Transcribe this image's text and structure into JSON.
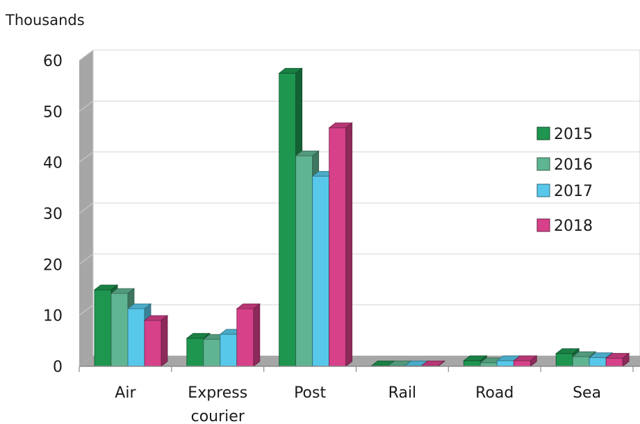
{
  "chart_data": {
    "type": "bar",
    "title": "",
    "unit_label": "Thousands",
    "xlabel": "",
    "ylabel": "",
    "ylim": [
      0,
      60
    ],
    "yticks": [
      "0",
      "10",
      "20",
      "30",
      "40",
      "50",
      "60"
    ],
    "grid": true,
    "legend_position": "right",
    "categories": [
      {
        "lines": [
          "Air"
        ]
      },
      {
        "lines": [
          "Express",
          "courier"
        ]
      },
      {
        "lines": [
          "Post"
        ]
      },
      {
        "lines": [
          "Rail"
        ]
      },
      {
        "lines": [
          "Road"
        ]
      },
      {
        "lines": [
          "Sea"
        ]
      }
    ],
    "series": [
      {
        "name": "2015",
        "color": "#1e9650",
        "values": [
          15,
          5.5,
          57.5,
          0.1,
          1.1,
          2.5
        ]
      },
      {
        "name": "2016",
        "color": "#5fb592",
        "values": [
          14.3,
          5.3,
          41.3,
          0.1,
          0.7,
          1.9
        ]
      },
      {
        "name": "2017",
        "color": "#57c8ea",
        "values": [
          11.3,
          6.3,
          37.3,
          0.1,
          1.1,
          1.7
        ]
      },
      {
        "name": "2018",
        "color": "#d7418a",
        "values": [
          9,
          11.3,
          46.8,
          0.1,
          1.1,
          1.6
        ]
      }
    ]
  }
}
